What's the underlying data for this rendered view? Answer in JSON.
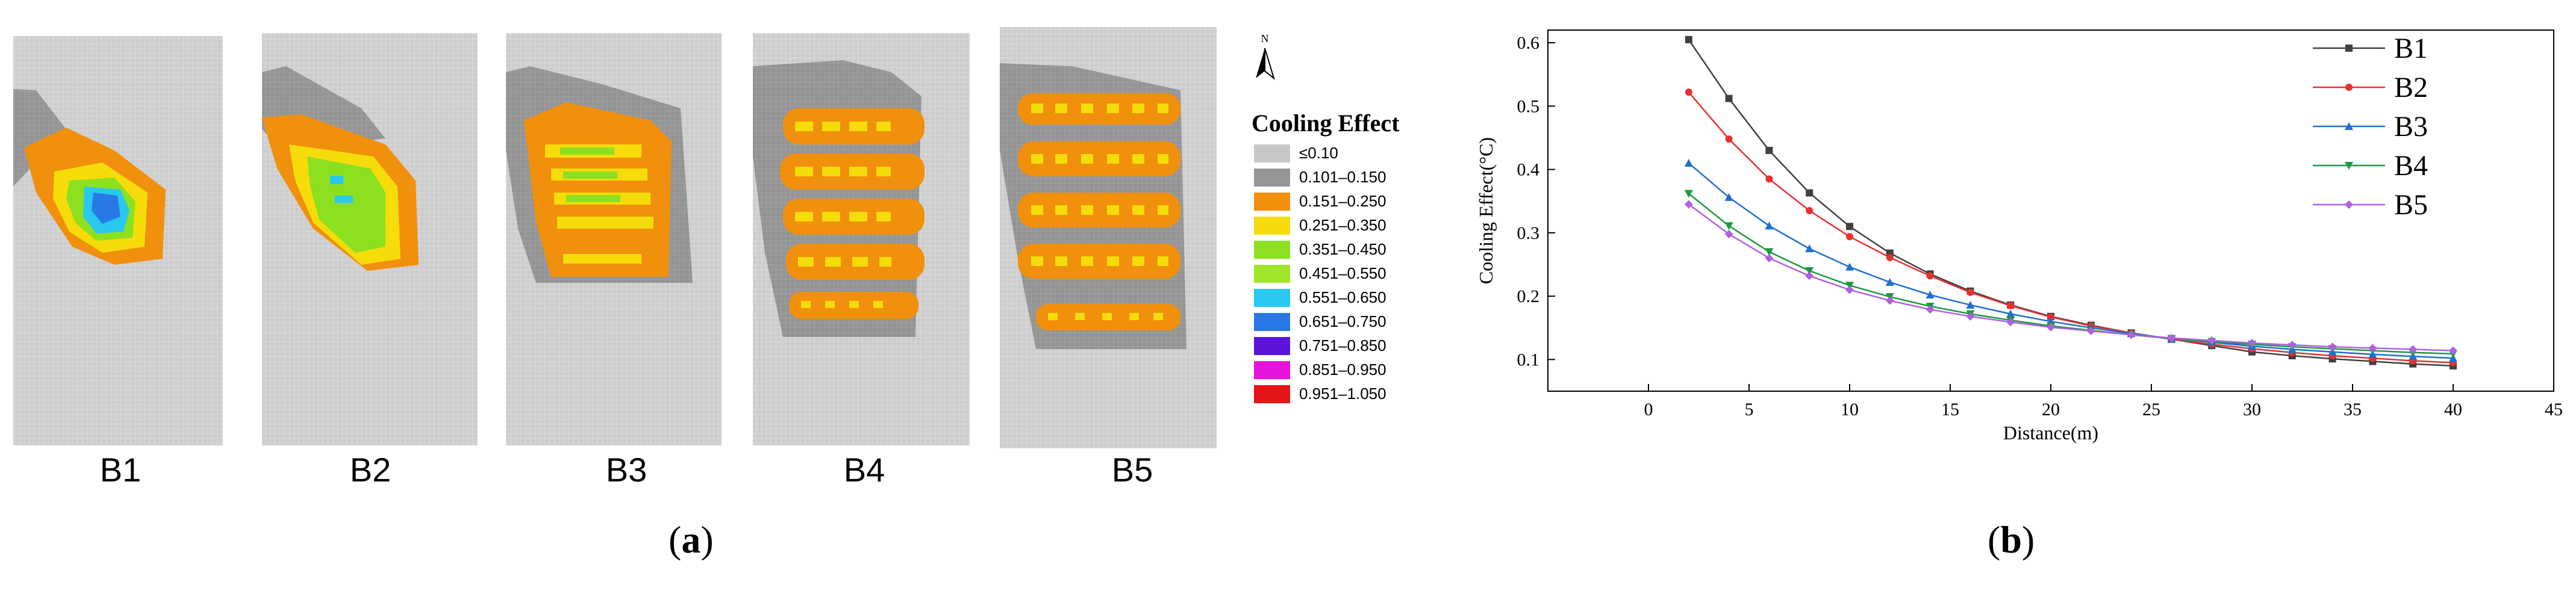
{
  "panels": {
    "a": {
      "label_prefix": "(",
      "label_letter": "a",
      "label_suffix": ")",
      "maps": [
        {
          "name": "B1"
        },
        {
          "name": "B2"
        },
        {
          "name": "B3"
        },
        {
          "name": "B4"
        },
        {
          "name": "B5"
        }
      ],
      "north": "N",
      "legend": {
        "title": "Cooling Effect",
        "items": [
          {
            "label": "≤0.10",
            "color": "#c8c8c8"
          },
          {
            "label": "0.101–0.150",
            "color": "#969696"
          },
          {
            "label": "0.151–0.250",
            "color": "#f0900c"
          },
          {
            "label": "0.251–0.350",
            "color": "#f5dc0a"
          },
          {
            "label": "0.351–0.450",
            "color": "#8ce020"
          },
          {
            "label": "0.451–0.550",
            "color": "#a0e628"
          },
          {
            "label": "0.551–0.650",
            "color": "#28c8f0"
          },
          {
            "label": "0.651–0.750",
            "color": "#2878e6"
          },
          {
            "label": "0.751–0.850",
            "color": "#5a14dc"
          },
          {
            "label": "0.851–0.950",
            "color": "#e614dc"
          },
          {
            "label": "0.951–1.050",
            "color": "#e61414"
          }
        ]
      }
    },
    "b": {
      "label_prefix": "(",
      "label_letter": "b",
      "label_suffix": ")"
    }
  },
  "chart_data": {
    "type": "line",
    "title": "",
    "xlabel": "Distance(m)",
    "ylabel": "Cooling Effect(°C)",
    "xlim": [
      -5,
      45
    ],
    "ylim": [
      0.05,
      0.62
    ],
    "xticks": [
      0,
      5,
      10,
      15,
      20,
      25,
      30,
      35,
      40,
      45
    ],
    "yticks": [
      0.1,
      0.2,
      0.3,
      0.4,
      0.5,
      0.6
    ],
    "legend_position": "top-right",
    "x": [
      2,
      4,
      6,
      8,
      10,
      12,
      14,
      16,
      18,
      20,
      22,
      24,
      26,
      28,
      30,
      32,
      34,
      36,
      38,
      40
    ],
    "series": [
      {
        "name": "B1",
        "color": "#404040",
        "marker": "square",
        "values": [
          0.605,
          0.512,
          0.43,
          0.363,
          0.31,
          0.268,
          0.235,
          0.208,
          0.186,
          0.168,
          0.154,
          0.142,
          0.132,
          0.122,
          0.112,
          0.106,
          0.101,
          0.097,
          0.093,
          0.09
        ]
      },
      {
        "name": "B2",
        "color": "#e83030",
        "marker": "circle",
        "values": [
          0.522,
          0.448,
          0.385,
          0.335,
          0.294,
          0.261,
          0.232,
          0.206,
          0.185,
          0.167,
          0.153,
          0.142,
          0.132,
          0.124,
          0.117,
          0.111,
          0.106,
          0.102,
          0.098,
          0.095
        ]
      },
      {
        "name": "B3",
        "color": "#1f6fd0",
        "marker": "triangle-up",
        "values": [
          0.41,
          0.356,
          0.311,
          0.275,
          0.246,
          0.222,
          0.202,
          0.186,
          0.172,
          0.16,
          0.15,
          0.141,
          0.133,
          0.127,
          0.121,
          0.116,
          0.112,
          0.108,
          0.105,
          0.102
        ]
      },
      {
        "name": "B4",
        "color": "#1a9a40",
        "marker": "triangle-down",
        "values": [
          0.362,
          0.311,
          0.27,
          0.24,
          0.217,
          0.199,
          0.184,
          0.172,
          0.162,
          0.153,
          0.146,
          0.139,
          0.133,
          0.128,
          0.124,
          0.12,
          0.117,
          0.114,
          0.111,
          0.109
        ]
      },
      {
        "name": "B5",
        "color": "#b060e0",
        "marker": "diamond",
        "values": [
          0.345,
          0.298,
          0.26,
          0.232,
          0.21,
          0.193,
          0.179,
          0.168,
          0.159,
          0.151,
          0.145,
          0.139,
          0.134,
          0.13,
          0.126,
          0.123,
          0.12,
          0.118,
          0.116,
          0.114
        ]
      }
    ]
  }
}
